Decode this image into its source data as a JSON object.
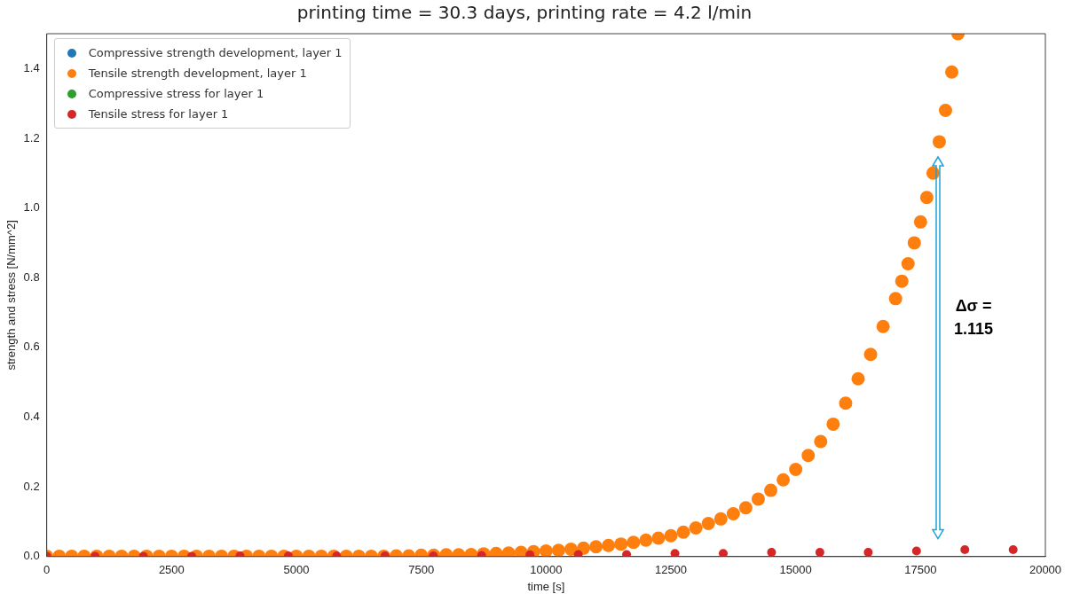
{
  "chart_data": {
    "type": "scatter",
    "title": "printing time = 30.3 days, printing rate = 4.2 l/min",
    "xlabel": "time [s]",
    "ylabel": "strength and stress [N/mm^2]",
    "series": [
      {
        "name": "Compressive strength development, layer 1",
        "color": "#1f77b4"
      },
      {
        "name": "Tensile strength development, layer 1",
        "color": "#ff7f0e",
        "x": [
          0,
          250,
          500,
          750,
          1000,
          1250,
          1500,
          1750,
          2000,
          2250,
          2500,
          2750,
          3000,
          3250,
          3500,
          3750,
          4000,
          4250,
          4500,
          4750,
          5000,
          5250,
          5500,
          5750,
          6000,
          6250,
          6500,
          6750,
          7000,
          7250,
          7500,
          7750,
          8000,
          8250,
          8500,
          8750,
          9000,
          9250,
          9500,
          9750,
          10000,
          10250,
          10500,
          10750,
          11000,
          11250,
          11500,
          11750,
          12000,
          12250,
          12500,
          12750,
          13000,
          13250,
          13500,
          13750,
          14000,
          14250,
          14500,
          14750,
          15000,
          15250,
          15500,
          15750,
          16000,
          16250,
          16500,
          16750,
          17000,
          17125,
          17250,
          17375,
          17500,
          17625,
          17750,
          17875,
          18000,
          18125,
          18250
        ],
        "values": [
          0.001,
          0.001,
          0.001,
          0.001,
          0.001,
          0.001,
          0.001,
          0.001,
          0.001,
          0.001,
          0.001,
          0.001,
          0.001,
          0.001,
          0.001,
          0.001,
          0.001,
          0.001,
          0.001,
          0.001,
          0.001,
          0.001,
          0.001,
          0.001,
          0.001,
          0.001,
          0.001,
          0.001,
          0.002,
          0.002,
          0.004,
          0.004,
          0.005,
          0.005,
          0.006,
          0.008,
          0.009,
          0.01,
          0.012,
          0.014,
          0.016,
          0.018,
          0.021,
          0.024,
          0.028,
          0.032,
          0.036,
          0.041,
          0.047,
          0.053,
          0.06,
          0.07,
          0.082,
          0.095,
          0.108,
          0.123,
          0.14,
          0.165,
          0.19,
          0.22,
          0.25,
          0.29,
          0.33,
          0.38,
          0.44,
          0.51,
          0.58,
          0.66,
          0.74,
          0.79,
          0.84,
          0.9,
          0.96,
          1.03,
          1.1,
          1.19,
          1.28,
          1.39,
          1.5
        ]
      },
      {
        "name": "Compressive stress for layer 1",
        "color": "#2ca02c"
      },
      {
        "name": "Tensile stress for layer 1",
        "color": "#d62728",
        "x": [
          0,
          968,
          1935,
          2903,
          3871,
          4839,
          5806,
          6774,
          7742,
          8710,
          9677,
          10645,
          11613,
          12581,
          13548,
          14516,
          15484,
          16452,
          17419,
          18387,
          19355
        ],
        "values": [
          0.001,
          0.001,
          0.001,
          0.001,
          0.002,
          0.002,
          0.002,
          0.002,
          0.002,
          0.003,
          0.005,
          0.006,
          0.006,
          0.009,
          0.009,
          0.012,
          0.012,
          0.012,
          0.016,
          0.02,
          0.02
        ]
      }
    ],
    "xlim": [
      0,
      20000
    ],
    "xticks": [
      0,
      2500,
      5000,
      7500,
      10000,
      12500,
      15000,
      17500,
      20000
    ],
    "ylim": [
      0,
      1.5
    ],
    "yticks": [
      {
        "value": 0,
        "label": "0.0"
      },
      {
        "value": 0.2,
        "label": "0.2"
      },
      {
        "value": 0.4,
        "label": "0.4"
      },
      {
        "value": 0.6,
        "label": "0.6"
      },
      {
        "value": 0.8,
        "label": "0.8"
      },
      {
        "value": 1.0,
        "label": "1.0"
      },
      {
        "value": 1.2,
        "label": "1.2"
      },
      {
        "value": 1.4,
        "label": "1.4"
      }
    ],
    "annotations": [
      "Δσ = 1.115"
    ],
    "legend": "top left",
    "marker": "circle",
    "grid": false
  }
}
